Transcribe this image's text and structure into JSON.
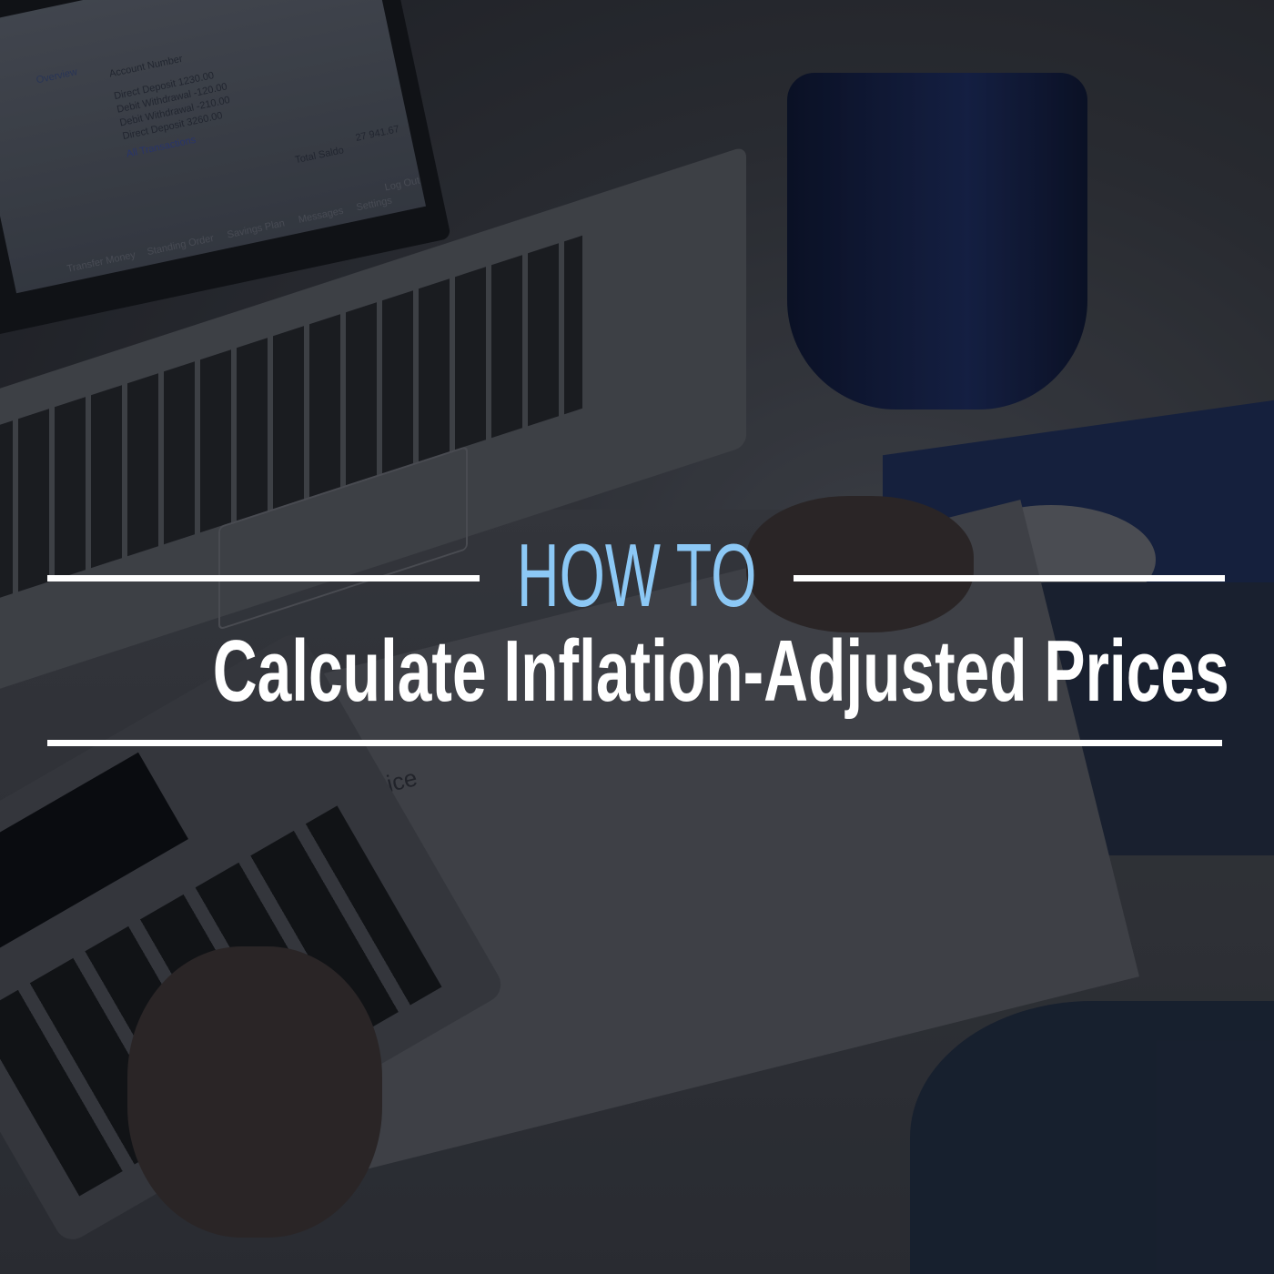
{
  "headline": {
    "kicker": "HOW TO",
    "title": "Calculate Inflation-Adjusted Prices",
    "kicker_color": "#8cc8f5",
    "title_color": "#ffffff"
  },
  "photo": {
    "laptop_screen": {
      "tab": "Overview",
      "column": "Account Number",
      "rows": [
        "Direct Deposit 1230.00",
        "Debit Withdrawal -120.00",
        "Debit Withdrawal -210.00",
        "Direct Deposit 3260.00"
      ],
      "link": "All Transactions",
      "total_label": "Total Saldo",
      "total_value": "27 941.67",
      "nav": [
        "Transfer Money",
        "Standing Order",
        "Savings Plan",
        "Messages",
        "Settings",
        "Log Out"
      ]
    },
    "document_title": "Invoice"
  }
}
